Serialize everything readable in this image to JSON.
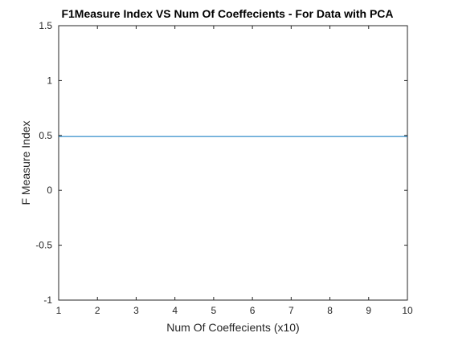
{
  "chart_data": {
    "type": "line",
    "title": "F1Measure Index VS Num Of Coeffecients - For Data with PCA",
    "xlabel": "Num Of Coeffecients (x10)",
    "ylabel": "F Measure Index",
    "xlim": [
      1,
      10
    ],
    "ylim": [
      -1,
      1.5
    ],
    "xticks": [
      1,
      2,
      3,
      4,
      5,
      6,
      7,
      8,
      9,
      10
    ],
    "yticks": [
      -1,
      -0.5,
      0,
      0.5,
      1,
      1.5
    ],
    "yticklabels": [
      "-1",
      "-0.5",
      "0",
      "0.5",
      "1",
      "1.5"
    ],
    "grid": false,
    "series": [
      {
        "x": [
          1,
          2,
          3,
          4,
          5,
          6,
          7,
          8,
          9,
          10
        ],
        "y": [
          0.49,
          0.49,
          0.49,
          0.49,
          0.49,
          0.49,
          0.49,
          0.49,
          0.49,
          0.49
        ],
        "color": "#0072BD"
      }
    ]
  }
}
